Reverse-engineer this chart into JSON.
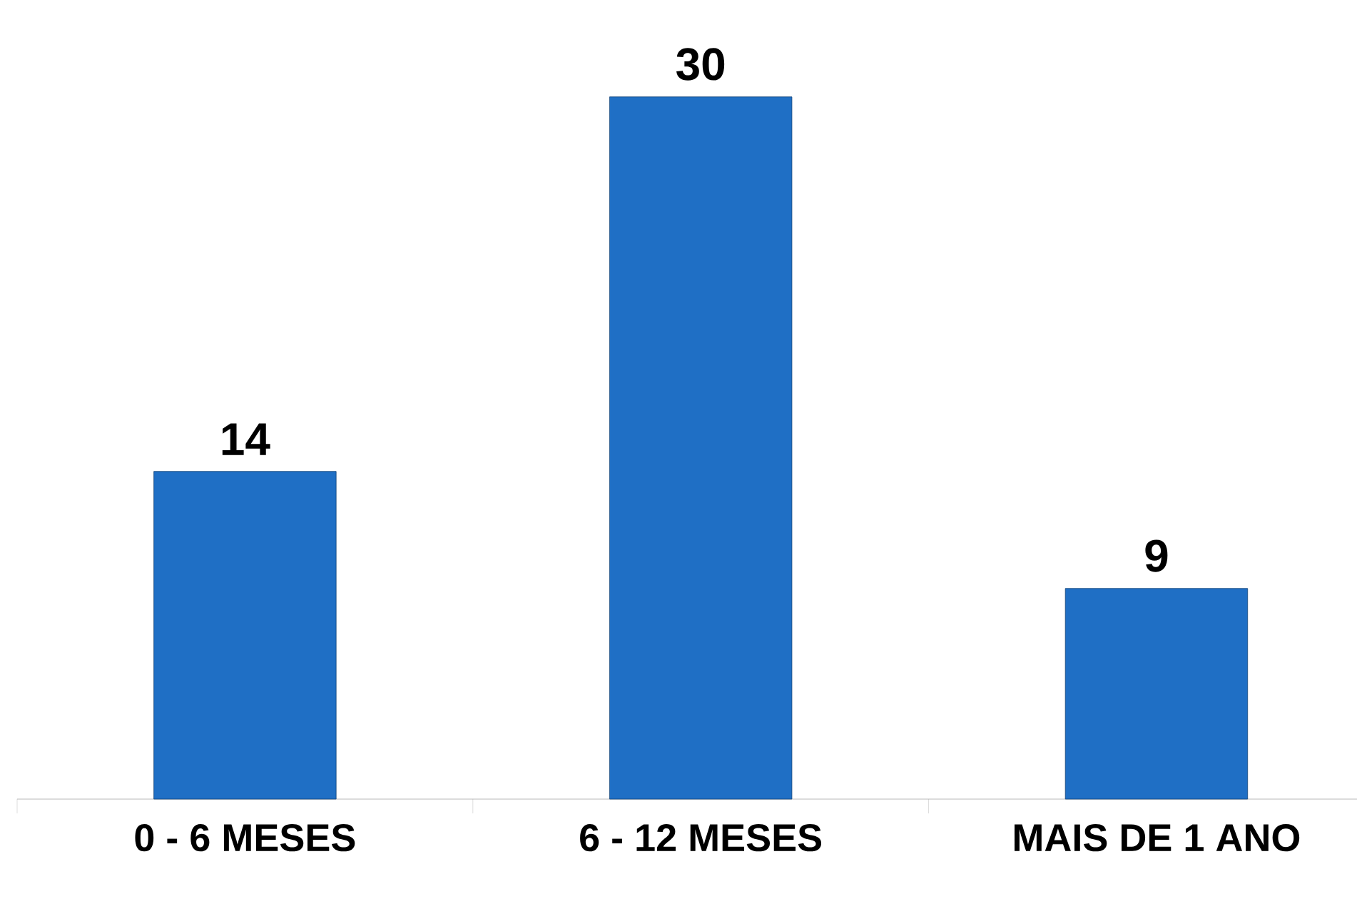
{
  "chart_data": {
    "type": "bar",
    "categories": [
      "0 - 6 MESES",
      "6 - 12 MESES",
      "MAIS DE 1 ANO"
    ],
    "values": [
      14,
      30,
      9
    ],
    "color": "#1f6fc5",
    "data_labels": true
  }
}
